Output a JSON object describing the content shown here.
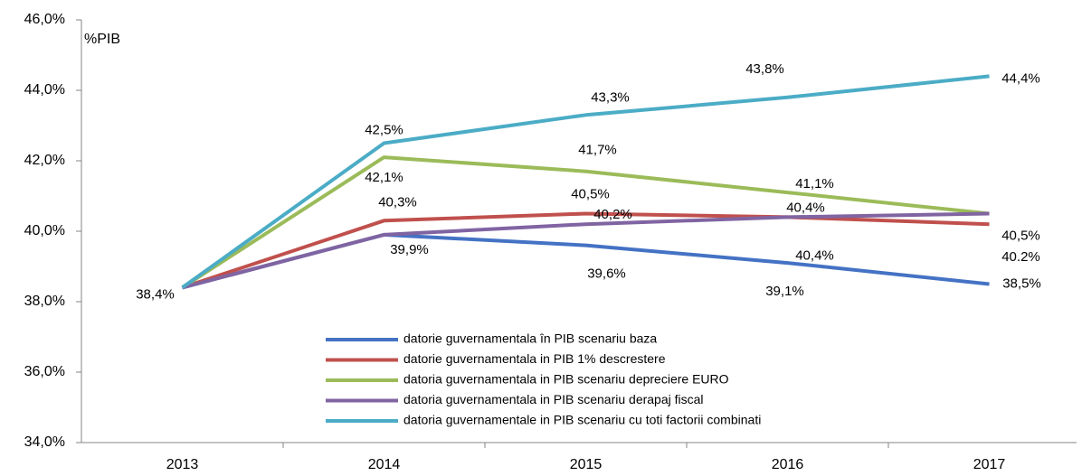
{
  "chart_data": {
    "type": "line",
    "y_label": "%PIB",
    "categories": [
      "2013",
      "2014",
      "2015",
      "2016",
      "2017"
    ],
    "ylim": [
      34,
      46
    ],
    "yticks": [
      {
        "value": 34,
        "label": "34,0%"
      },
      {
        "value": 36,
        "label": "36,0%"
      },
      {
        "value": 38,
        "label": "38,0%"
      },
      {
        "value": 40,
        "label": "40,0%"
      },
      {
        "value": 42,
        "label": "42,0%"
      },
      {
        "value": 44,
        "label": "44,0%"
      },
      {
        "value": 46,
        "label": "46,0%"
      }
    ],
    "legend": "inside-bottom-center",
    "series": [
      {
        "name": "datorie guvernamentala în PIB scenariu baza",
        "color": "#4472c4",
        "values": [
          38.4,
          39.9,
          39.6,
          39.1,
          38.5
        ],
        "value_labels": [
          "38,4%",
          "39,9%",
          "39,6%",
          "39,1%",
          "38,5%"
        ]
      },
      {
        "name": "datorie guvernamentala in  PIB 1% descrestere",
        "color": "#c0504d",
        "values": [
          38.4,
          40.3,
          40.5,
          40.4,
          40.2
        ],
        "value_labels": [
          null,
          "40,3%",
          "40,5%",
          "40,4%",
          "40.2%"
        ]
      },
      {
        "name": "datoria guvernamentala in PIB  scenariu depreciere EURO",
        "color": "#9bbb59",
        "values": [
          38.4,
          42.1,
          41.7,
          41.1,
          40.5
        ],
        "value_labels": [
          null,
          "42,1%",
          "41,7%",
          "41,1%",
          null
        ]
      },
      {
        "name": "datoria guvernamentala in PIB scenariu derapaj fiscal",
        "color": "#8064a2",
        "values": [
          38.4,
          39.9,
          40.2,
          40.4,
          40.5
        ],
        "value_labels": [
          null,
          null,
          "40,2%",
          "40,4%",
          "40,5%"
        ]
      },
      {
        "name": "datoria guvernamentale in PIB scenariu cu toti factorii combinati",
        "color": "#4bacc6",
        "values": [
          38.4,
          42.5,
          43.3,
          43.8,
          44.4
        ],
        "value_labels": [
          null,
          "42,5%",
          "43,3%",
          "43,8%",
          "44,4%"
        ]
      }
    ]
  }
}
